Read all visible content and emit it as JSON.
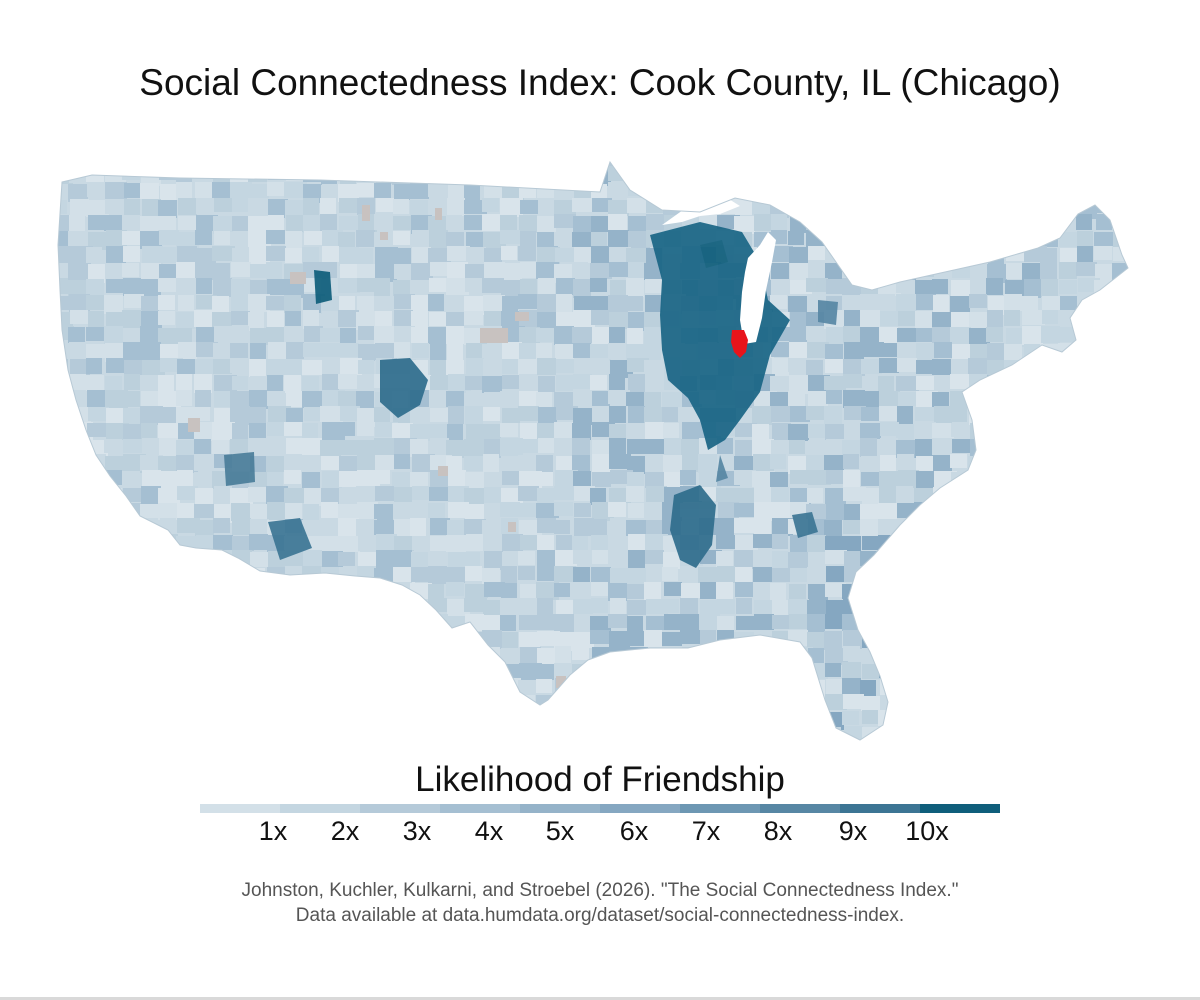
{
  "title": "Social Connectedness Index: Cook County, IL (Chicago)",
  "legend": {
    "title": "Likelihood of Friendship",
    "ticks": [
      "1x",
      "2x",
      "3x",
      "4x",
      "5x",
      "6x",
      "7x",
      "8x",
      "9x",
      "10x"
    ],
    "colors": [
      "#d3e0e8",
      "#c4d6e1",
      "#b5cad9",
      "#a5bfd2",
      "#95b3c9",
      "#85a7c1",
      "#6d97b3",
      "#5787a4",
      "#3c7594",
      "#0f5e7b"
    ]
  },
  "map": {
    "region": "Contiguous United States",
    "focus_county": "Cook County, IL",
    "focus_color": "#e8141b",
    "base_color": "#c9d9e3",
    "no_data_color": "#c8c2c0",
    "lake_color": "#ffffff"
  },
  "credit": {
    "line1": "Johnston, Kuchler, Kulkarni, and Stroebel (2026). \"The Social Connectedness Index.\"",
    "line2": "Data available at data.humdata.org/dataset/social-connectedness-index."
  }
}
